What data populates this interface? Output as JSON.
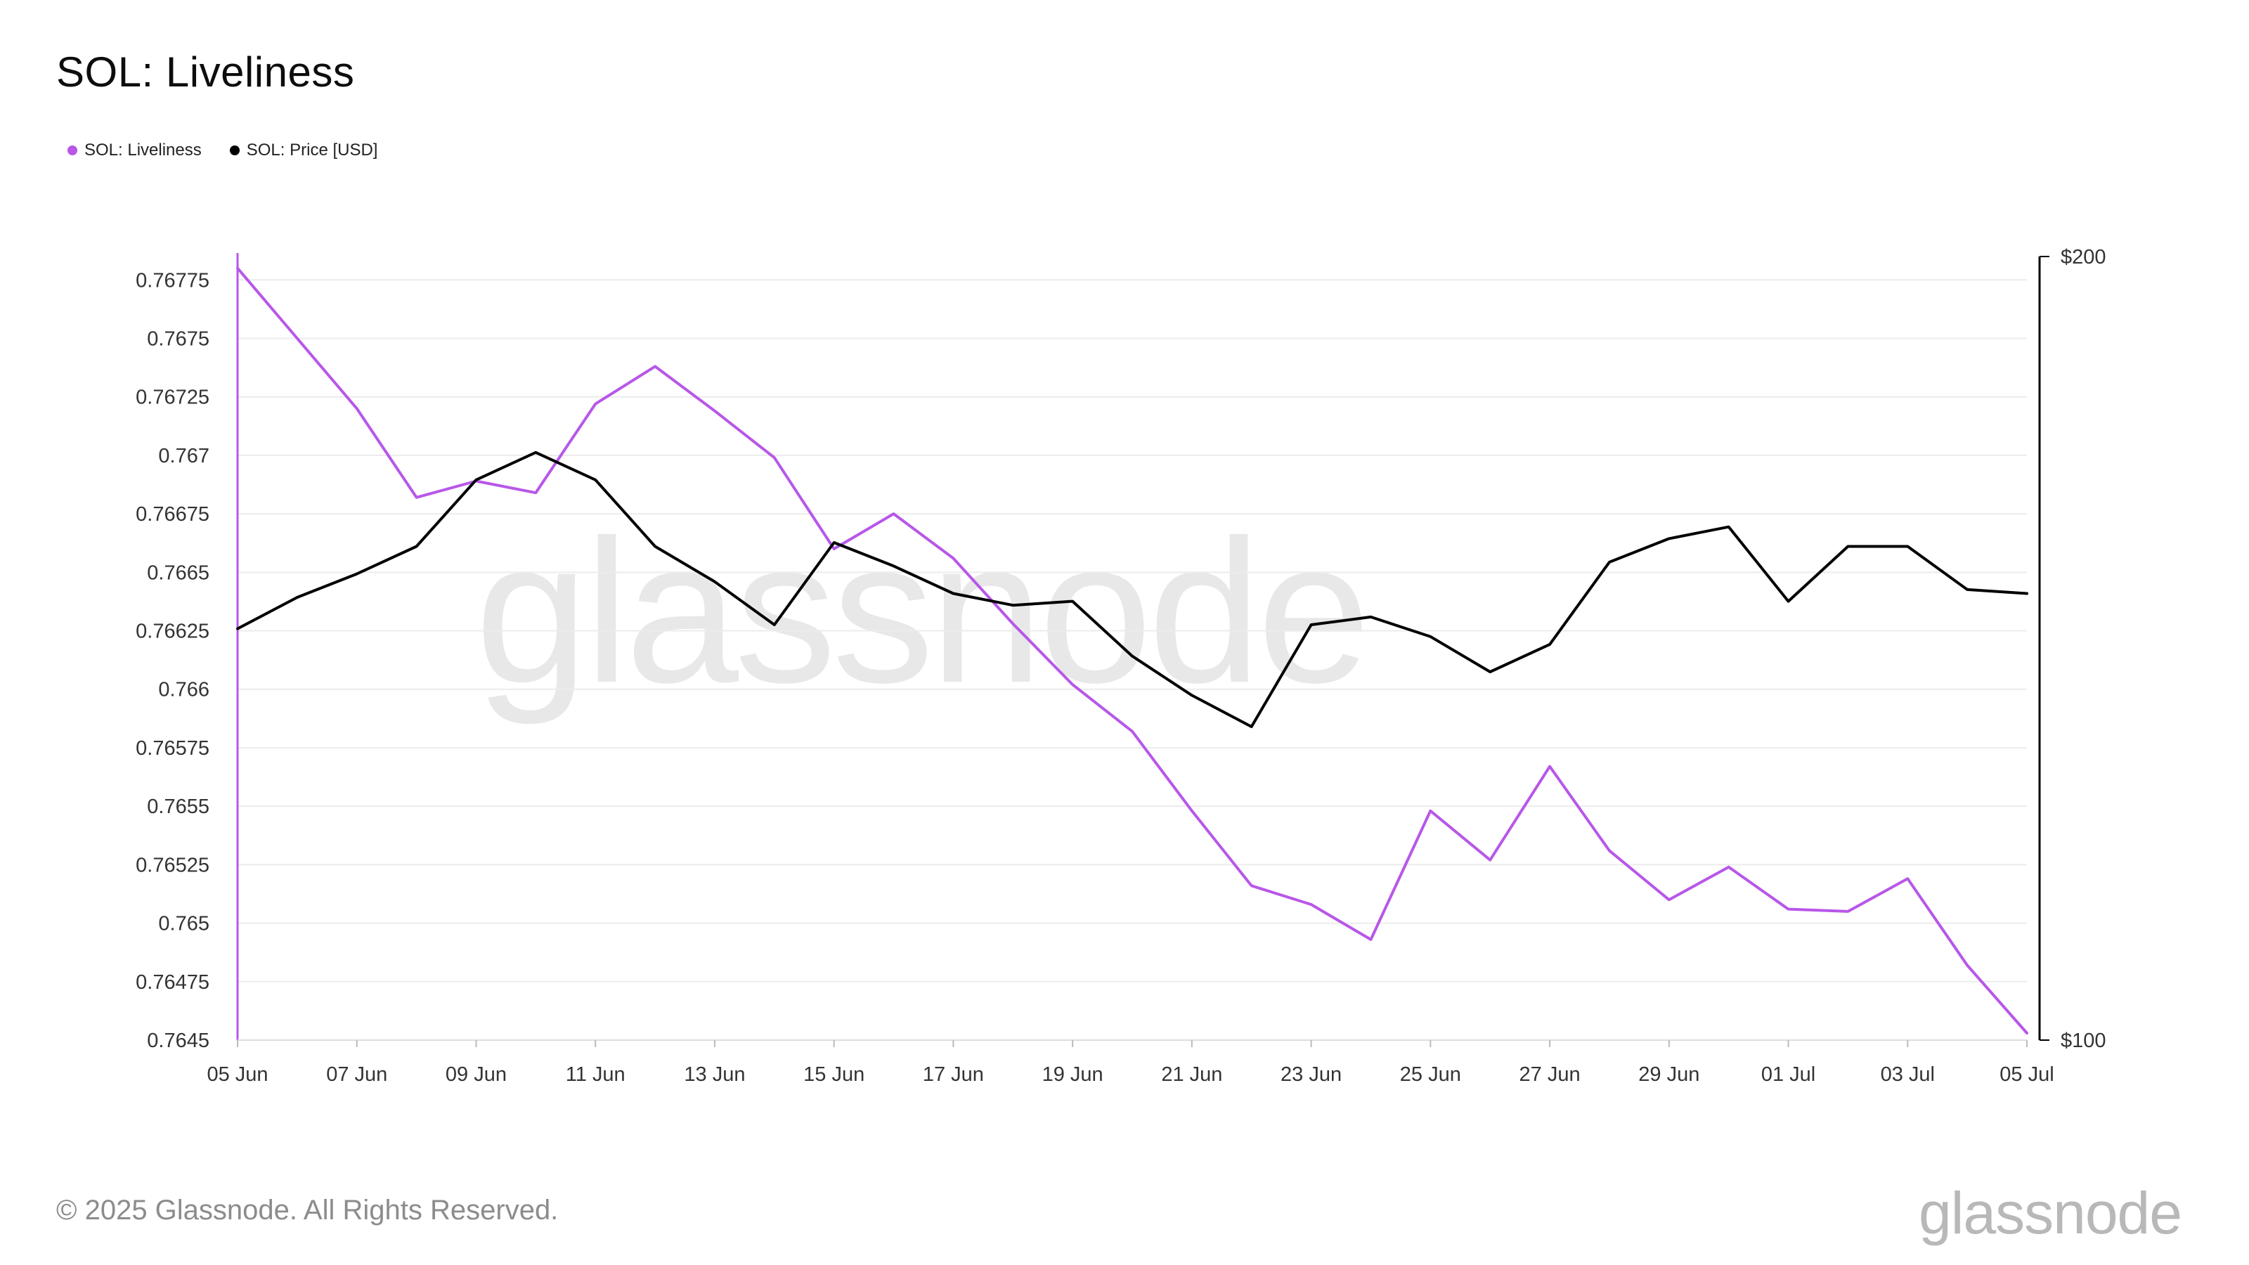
{
  "title": "SOL: Liveliness",
  "legend": [
    {
      "label": "SOL: Liveliness",
      "color": "#b857e8"
    },
    {
      "label": "SOL: Price [USD]",
      "color": "#000000"
    }
  ],
  "watermark": "glassnode",
  "footer": {
    "copyright": "© 2025 Glassnode. All Rights Reserved.",
    "logo": "glassnode"
  },
  "chart_data": {
    "type": "line",
    "title": "SOL: Liveliness",
    "x": [
      "2025-06-05",
      "2025-06-06",
      "2025-06-07",
      "2025-06-08",
      "2025-06-09",
      "2025-06-10",
      "2025-06-11",
      "2025-06-12",
      "2025-06-13",
      "2025-06-14",
      "2025-06-15",
      "2025-06-16",
      "2025-06-17",
      "2025-06-18",
      "2025-06-19",
      "2025-06-20",
      "2025-06-21",
      "2025-06-22",
      "2025-06-23",
      "2025-06-24",
      "2025-06-25",
      "2025-06-26",
      "2025-06-27",
      "2025-06-28",
      "2025-06-29",
      "2025-06-30",
      "2025-07-01",
      "2025-07-02",
      "2025-07-03",
      "2025-07-04",
      "2025-07-05"
    ],
    "x_tick_labels": [
      "05 Jun",
      "07 Jun",
      "09 Jun",
      "11 Jun",
      "13 Jun",
      "15 Jun",
      "17 Jun",
      "19 Jun",
      "21 Jun",
      "23 Jun",
      "25 Jun",
      "27 Jun",
      "29 Jun",
      "01 Jul",
      "03 Jul",
      "05 Jul"
    ],
    "left_axis": {
      "ticks": [
        "0.7645",
        "0.76475",
        "0.765",
        "0.76525",
        "0.7655",
        "0.76575",
        "0.766",
        "0.76625",
        "0.7665",
        "0.76675",
        "0.767",
        "0.76725",
        "0.7675",
        "0.76775"
      ],
      "ylim": [
        0.7645,
        0.76785
      ]
    },
    "right_axis": {
      "ticks": [
        "$100",
        "$200"
      ],
      "ylim": [
        100,
        200
      ]
    },
    "grid": true,
    "legend_position": "top-left",
    "series": [
      {
        "name": "SOL: Liveliness",
        "axis": "left",
        "color": "#b857e8",
        "values": [
          0.7678,
          0.7675,
          0.7672,
          0.76682,
          0.76689,
          0.76684,
          0.76722,
          0.76738,
          0.76719,
          0.76699,
          0.7666,
          0.76675,
          0.76656,
          0.76628,
          0.76602,
          0.76582,
          0.76548,
          0.76516,
          0.76508,
          0.76493,
          0.76548,
          0.76527,
          0.76567,
          0.76531,
          0.7651,
          0.76524,
          0.76506,
          0.76505,
          0.76519,
          0.76482,
          0.76453
        ]
      },
      {
        "name": "SOL: Price [USD]",
        "axis": "right",
        "color": "#000000",
        "values": [
          152.5,
          156.5,
          159.5,
          163.0,
          171.5,
          175.0,
          171.5,
          163.0,
          158.5,
          153.0,
          163.5,
          160.5,
          157.0,
          155.5,
          156.0,
          149.0,
          144.0,
          140.0,
          153.0,
          154.0,
          151.5,
          147.0,
          150.5,
          161.0,
          164.0,
          165.5,
          156.0,
          163.0,
          163.0,
          157.5,
          157.0
        ]
      }
    ]
  }
}
